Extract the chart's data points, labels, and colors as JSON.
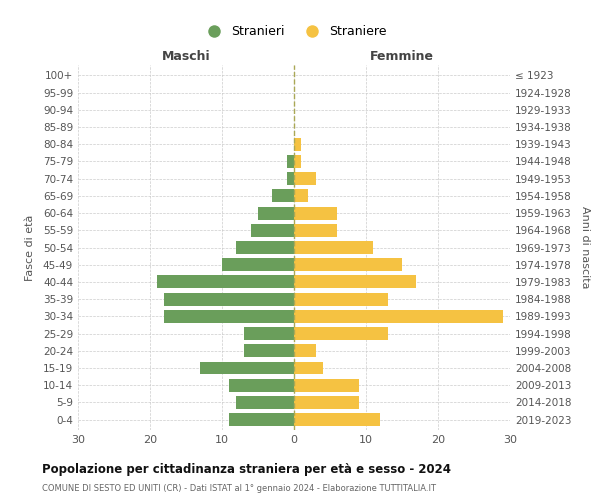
{
  "age_groups": [
    "0-4",
    "5-9",
    "10-14",
    "15-19",
    "20-24",
    "25-29",
    "30-34",
    "35-39",
    "40-44",
    "45-49",
    "50-54",
    "55-59",
    "60-64",
    "65-69",
    "70-74",
    "75-79",
    "80-84",
    "85-89",
    "90-94",
    "95-99",
    "100+"
  ],
  "birth_years": [
    "2019-2023",
    "2014-2018",
    "2009-2013",
    "2004-2008",
    "1999-2003",
    "1994-1998",
    "1989-1993",
    "1984-1988",
    "1979-1983",
    "1974-1978",
    "1969-1973",
    "1964-1968",
    "1959-1963",
    "1954-1958",
    "1949-1953",
    "1944-1948",
    "1939-1943",
    "1934-1938",
    "1929-1933",
    "1924-1928",
    "≤ 1923"
  ],
  "maschi": [
    9,
    8,
    9,
    13,
    7,
    7,
    18,
    18,
    19,
    10,
    8,
    6,
    5,
    3,
    1,
    1,
    0,
    0,
    0,
    0,
    0
  ],
  "femmine": [
    12,
    9,
    9,
    4,
    3,
    13,
    29,
    13,
    17,
    15,
    11,
    6,
    6,
    2,
    3,
    1,
    1,
    0,
    0,
    0,
    0
  ],
  "maschi_color": "#6a9e5b",
  "femmine_color": "#f5c242",
  "maschi_label": "Stranieri",
  "femmine_label": "Straniere",
  "title": "Popolazione per cittadinanza straniera per età e sesso - 2024",
  "subtitle": "COMUNE DI SESTO ED UNITI (CR) - Dati ISTAT al 1° gennaio 2024 - Elaborazione TUTTITALIA.IT",
  "xlabel_left": "Maschi",
  "xlabel_right": "Femmine",
  "ylabel_left": "Fasce di età",
  "ylabel_right": "Anni di nascita",
  "xlim": 30,
  "bg_color": "#ffffff",
  "grid_color": "#cccccc"
}
